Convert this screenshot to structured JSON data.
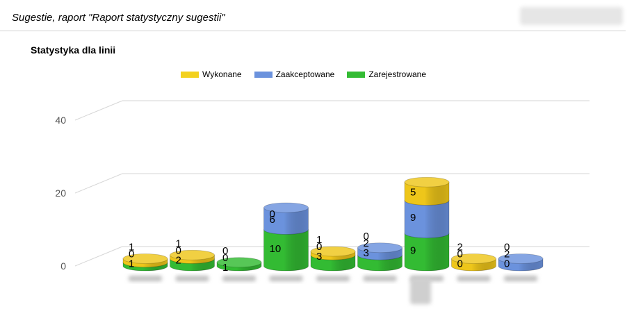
{
  "header": {
    "title": "Sugestie, raport \"Raport statystyczny sugestii\""
  },
  "chart_data": {
    "type": "bar",
    "stacked": true,
    "three_d": true,
    "title": "Statystyka dla linii",
    "legend_position": "top",
    "ylim": [
      0,
      40
    ],
    "y_ticks": [
      0,
      20,
      40
    ],
    "categories": [
      "",
      "",
      "",
      "",
      "",
      "",
      "",
      "",
      ""
    ],
    "series": [
      {
        "name": "Zarejestrowane",
        "color": "#33bb33",
        "values": [
          1,
          2,
          1,
          10,
          3,
          3,
          9,
          0,
          0
        ]
      },
      {
        "name": "Zaakceptowane",
        "color": "#6b92dd",
        "values": [
          0,
          0,
          0,
          6,
          0,
          2,
          9,
          0,
          2
        ]
      },
      {
        "name": "Wykonane",
        "color": "#eec61a",
        "values": [
          1,
          1,
          0,
          0,
          1,
          0,
          5,
          2,
          0
        ]
      }
    ],
    "legend_order": [
      "Wykonane",
      "Zaakceptowane",
      "Zarejestrowane"
    ]
  }
}
